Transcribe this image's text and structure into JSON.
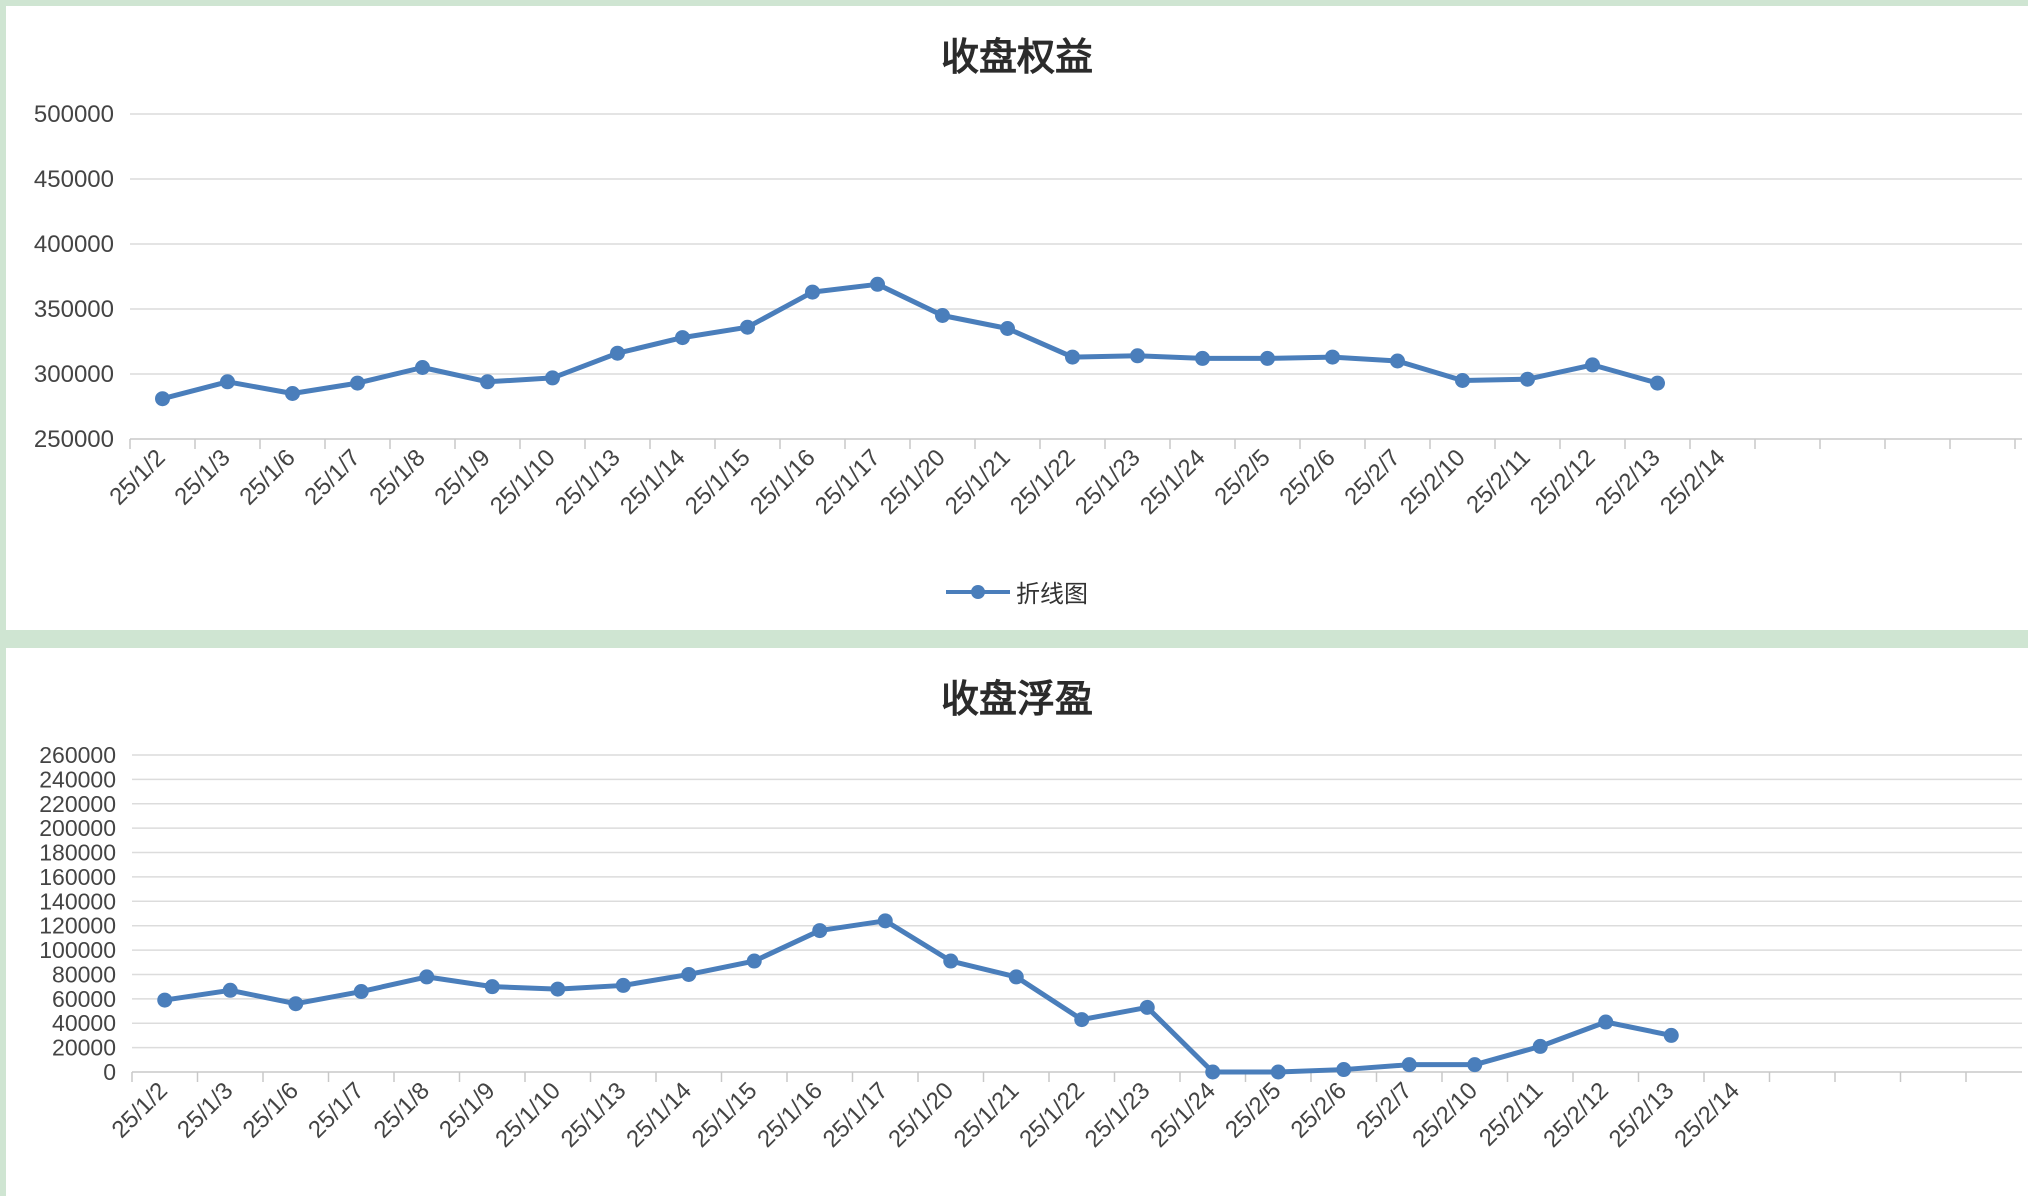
{
  "chart_data": [
    {
      "type": "line",
      "title": "收盘权益",
      "categories": [
        "25/1/2",
        "25/1/3",
        "25/1/6",
        "25/1/7",
        "25/1/8",
        "25/1/9",
        "25/1/10",
        "25/1/13",
        "25/1/14",
        "25/1/15",
        "25/1/16",
        "25/1/17",
        "25/1/20",
        "25/1/21",
        "25/1/22",
        "25/1/23",
        "25/1/24",
        "25/2/5",
        "25/2/6",
        "25/2/7",
        "25/2/10",
        "25/2/11",
        "25/2/12",
        "25/2/13",
        "25/2/14"
      ],
      "series": [
        {
          "name": "折线图",
          "values": [
            281000,
            294000,
            285000,
            293000,
            305000,
            294000,
            297000,
            316000,
            328000,
            336000,
            363000,
            369000,
            345000,
            335000,
            313000,
            314000,
            312000,
            312000,
            313000,
            310000,
            295000,
            296000,
            307000,
            293000,
            null
          ]
        }
      ],
      "ylim": [
        250000,
        500000
      ],
      "yticks": [
        "250000",
        "300000",
        "350000",
        "400000",
        "450000",
        "500000"
      ],
      "grid": true,
      "legend_position": "bottom",
      "color": "#4a7ebb"
    },
    {
      "type": "line",
      "title": "收盘浮盈",
      "categories": [
        "25/1/2",
        "25/1/3",
        "25/1/6",
        "25/1/7",
        "25/1/8",
        "25/1/9",
        "25/1/10",
        "25/1/13",
        "25/1/14",
        "25/1/15",
        "25/1/16",
        "25/1/17",
        "25/1/20",
        "25/1/21",
        "25/1/22",
        "25/1/23",
        "25/1/24",
        "25/2/5",
        "25/2/6",
        "25/2/7",
        "25/2/10",
        "25/2/11",
        "25/2/12",
        "25/2/13",
        "25/2/14"
      ],
      "series": [
        {
          "values": [
            59000,
            67000,
            56000,
            66000,
            78000,
            70000,
            68000,
            71000,
            80000,
            91000,
            116000,
            124000,
            91000,
            78000,
            43000,
            53000,
            0,
            0,
            2000,
            6000,
            6000,
            21000,
            41000,
            30000,
            null
          ]
        }
      ],
      "ylim": [
        0,
        260000
      ],
      "yticks": [
        "0",
        "20000",
        "40000",
        "60000",
        "80000",
        "100000",
        "120000",
        "140000",
        "160000",
        "180000",
        "200000",
        "220000",
        "240000",
        "260000"
      ],
      "grid": true,
      "color": "#4a7ebb"
    }
  ]
}
